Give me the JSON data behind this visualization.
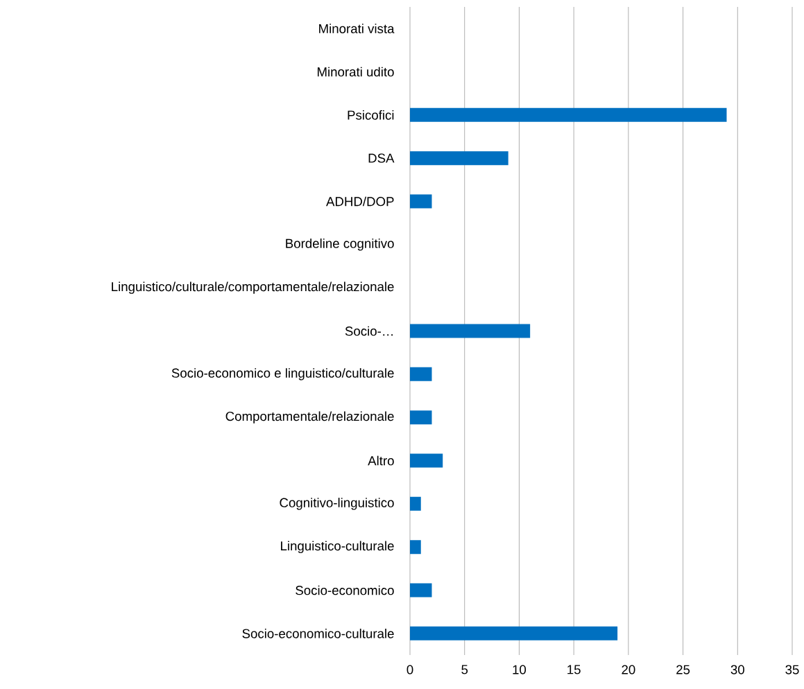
{
  "chart_data": {
    "type": "bar",
    "orientation": "horizontal",
    "categories": [
      "Minorati vista",
      "Minorati udito",
      "Psicofici",
      "DSA",
      "ADHD/DOP",
      "Bordeline cognitivo",
      "Linguistico/culturale/comportamentale/relazionale",
      "Socio-…",
      "Socio-economico e linguistico/culturale",
      "Comportamentale/relazionale",
      "Altro",
      "Cognitivo-linguistico",
      "Linguistico-culturale",
      "Socio-economico",
      "Socio-economico-culturale"
    ],
    "values": [
      0,
      0,
      29,
      9,
      2,
      0,
      0,
      11,
      2,
      2,
      3,
      1,
      1,
      2,
      19
    ],
    "color": "#0070c0",
    "xlim": [
      0,
      35
    ],
    "xticks": [
      0,
      5,
      10,
      15,
      20,
      25,
      30,
      35
    ],
    "grid": "x"
  }
}
